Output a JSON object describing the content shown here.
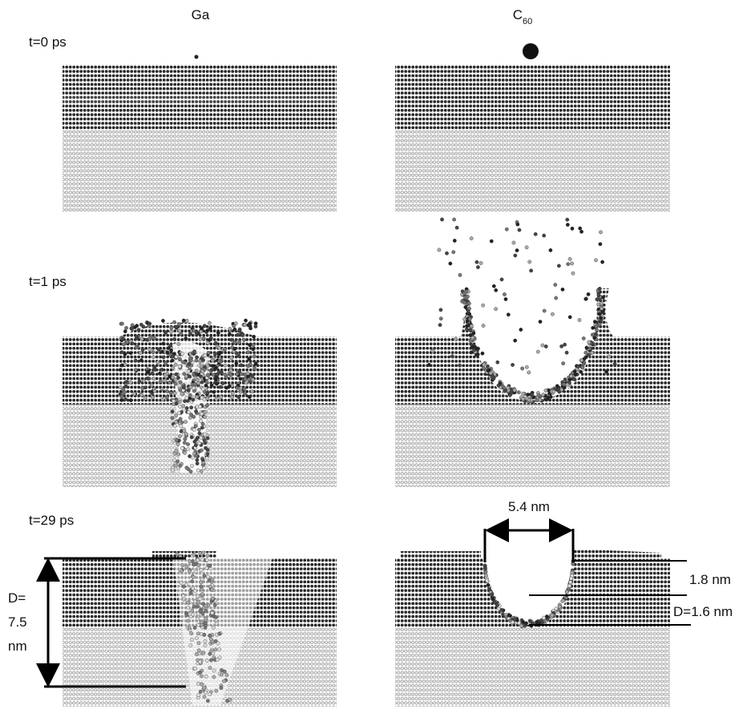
{
  "columns": [
    {
      "label": "Ga"
    },
    {
      "label": "C",
      "subscript": "60"
    }
  ],
  "rows": [
    {
      "label": "t=0 ps"
    },
    {
      "label": "t=1 ps"
    },
    {
      "label": "t=29 ps"
    }
  ],
  "annotations": {
    "ga_depth": [
      "D=",
      "7.5",
      "nm"
    ],
    "c60_width": "5.4 nm",
    "c60_rim": "1.8 nm",
    "c60_depth": "D=1.6 nm"
  }
}
